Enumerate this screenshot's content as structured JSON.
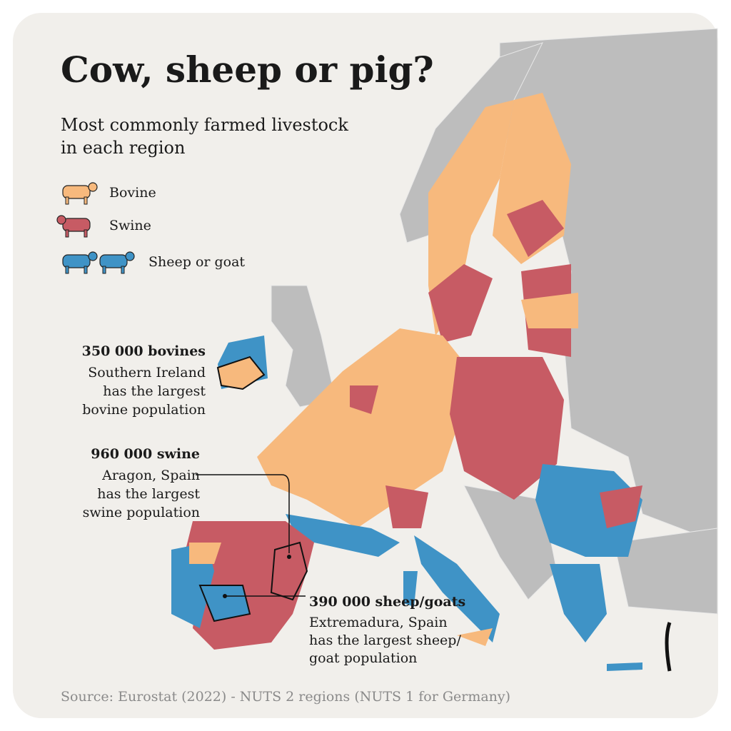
{
  "title": "Cow, sheep or pig?",
  "subtitle": [
    "Most commonly farmed livestock",
    "in each region"
  ],
  "legend": [
    {
      "label": "Bovine",
      "color": "#f7b97d"
    },
    {
      "label": "Swine",
      "color": "#c75b64"
    },
    {
      "label": "Sheep or goat",
      "color": "#3f93c6"
    }
  ],
  "annotations": [
    {
      "headline": "350 000 bovines",
      "lines": [
        "Southern Ireland",
        "has the largest",
        "bovine population"
      ]
    },
    {
      "headline": "960 000 swine",
      "lines": [
        "Aragon, Spain",
        "has the largest",
        "swine population"
      ]
    },
    {
      "headline": "390 000 sheep/goats",
      "lines": [
        "Extremadura, Spain",
        "has the largest sheep/",
        "goat population"
      ]
    }
  ],
  "source": "Source: Eurostat (2022) - NUTS 2 regions (NUTS 1 for Germany)"
}
